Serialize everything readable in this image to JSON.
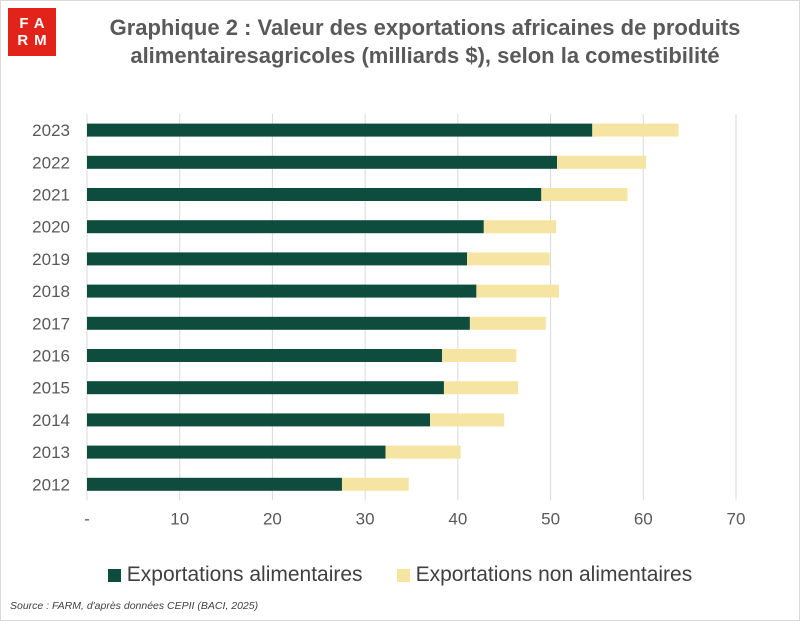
{
  "logo": {
    "line1": "FA",
    "line2": "RM"
  },
  "colors": {
    "food": "#0e4d3d",
    "nonfood": "#f6e4a3",
    "grid": "#d9d9d9",
    "logo": "#e2231a"
  },
  "chart_data": {
    "type": "bar",
    "orientation": "horizontal",
    "stacked": true,
    "title": "Graphique 2 : Valeur des exportations africaines de produits alimentairesagricoles (milliards $), selon la comestibilité",
    "categories": [
      "2023",
      "2022",
      "2021",
      "2020",
      "2019",
      "2018",
      "2017",
      "2016",
      "2015",
      "2014",
      "2013",
      "2012"
    ],
    "series": [
      {
        "name": "Exportations alimentaires",
        "values": [
          54.5,
          50.7,
          49.0,
          42.8,
          41.0,
          42.0,
          41.3,
          38.3,
          38.5,
          37.0,
          32.2,
          27.5
        ]
      },
      {
        "name": "Exportations non alimentaires",
        "values": [
          9.3,
          9.6,
          9.3,
          7.8,
          8.9,
          8.9,
          8.2,
          8.0,
          8.0,
          8.0,
          8.1,
          7.2
        ]
      }
    ],
    "xlim": [
      0,
      70
    ],
    "xticks": [
      "-",
      "10",
      "20",
      "30",
      "40",
      "50",
      "60",
      "70"
    ],
    "grid": "vertical",
    "legend": "bottom"
  },
  "source": "Source : FARM, d'après données CEPII (BACI, 2025)"
}
